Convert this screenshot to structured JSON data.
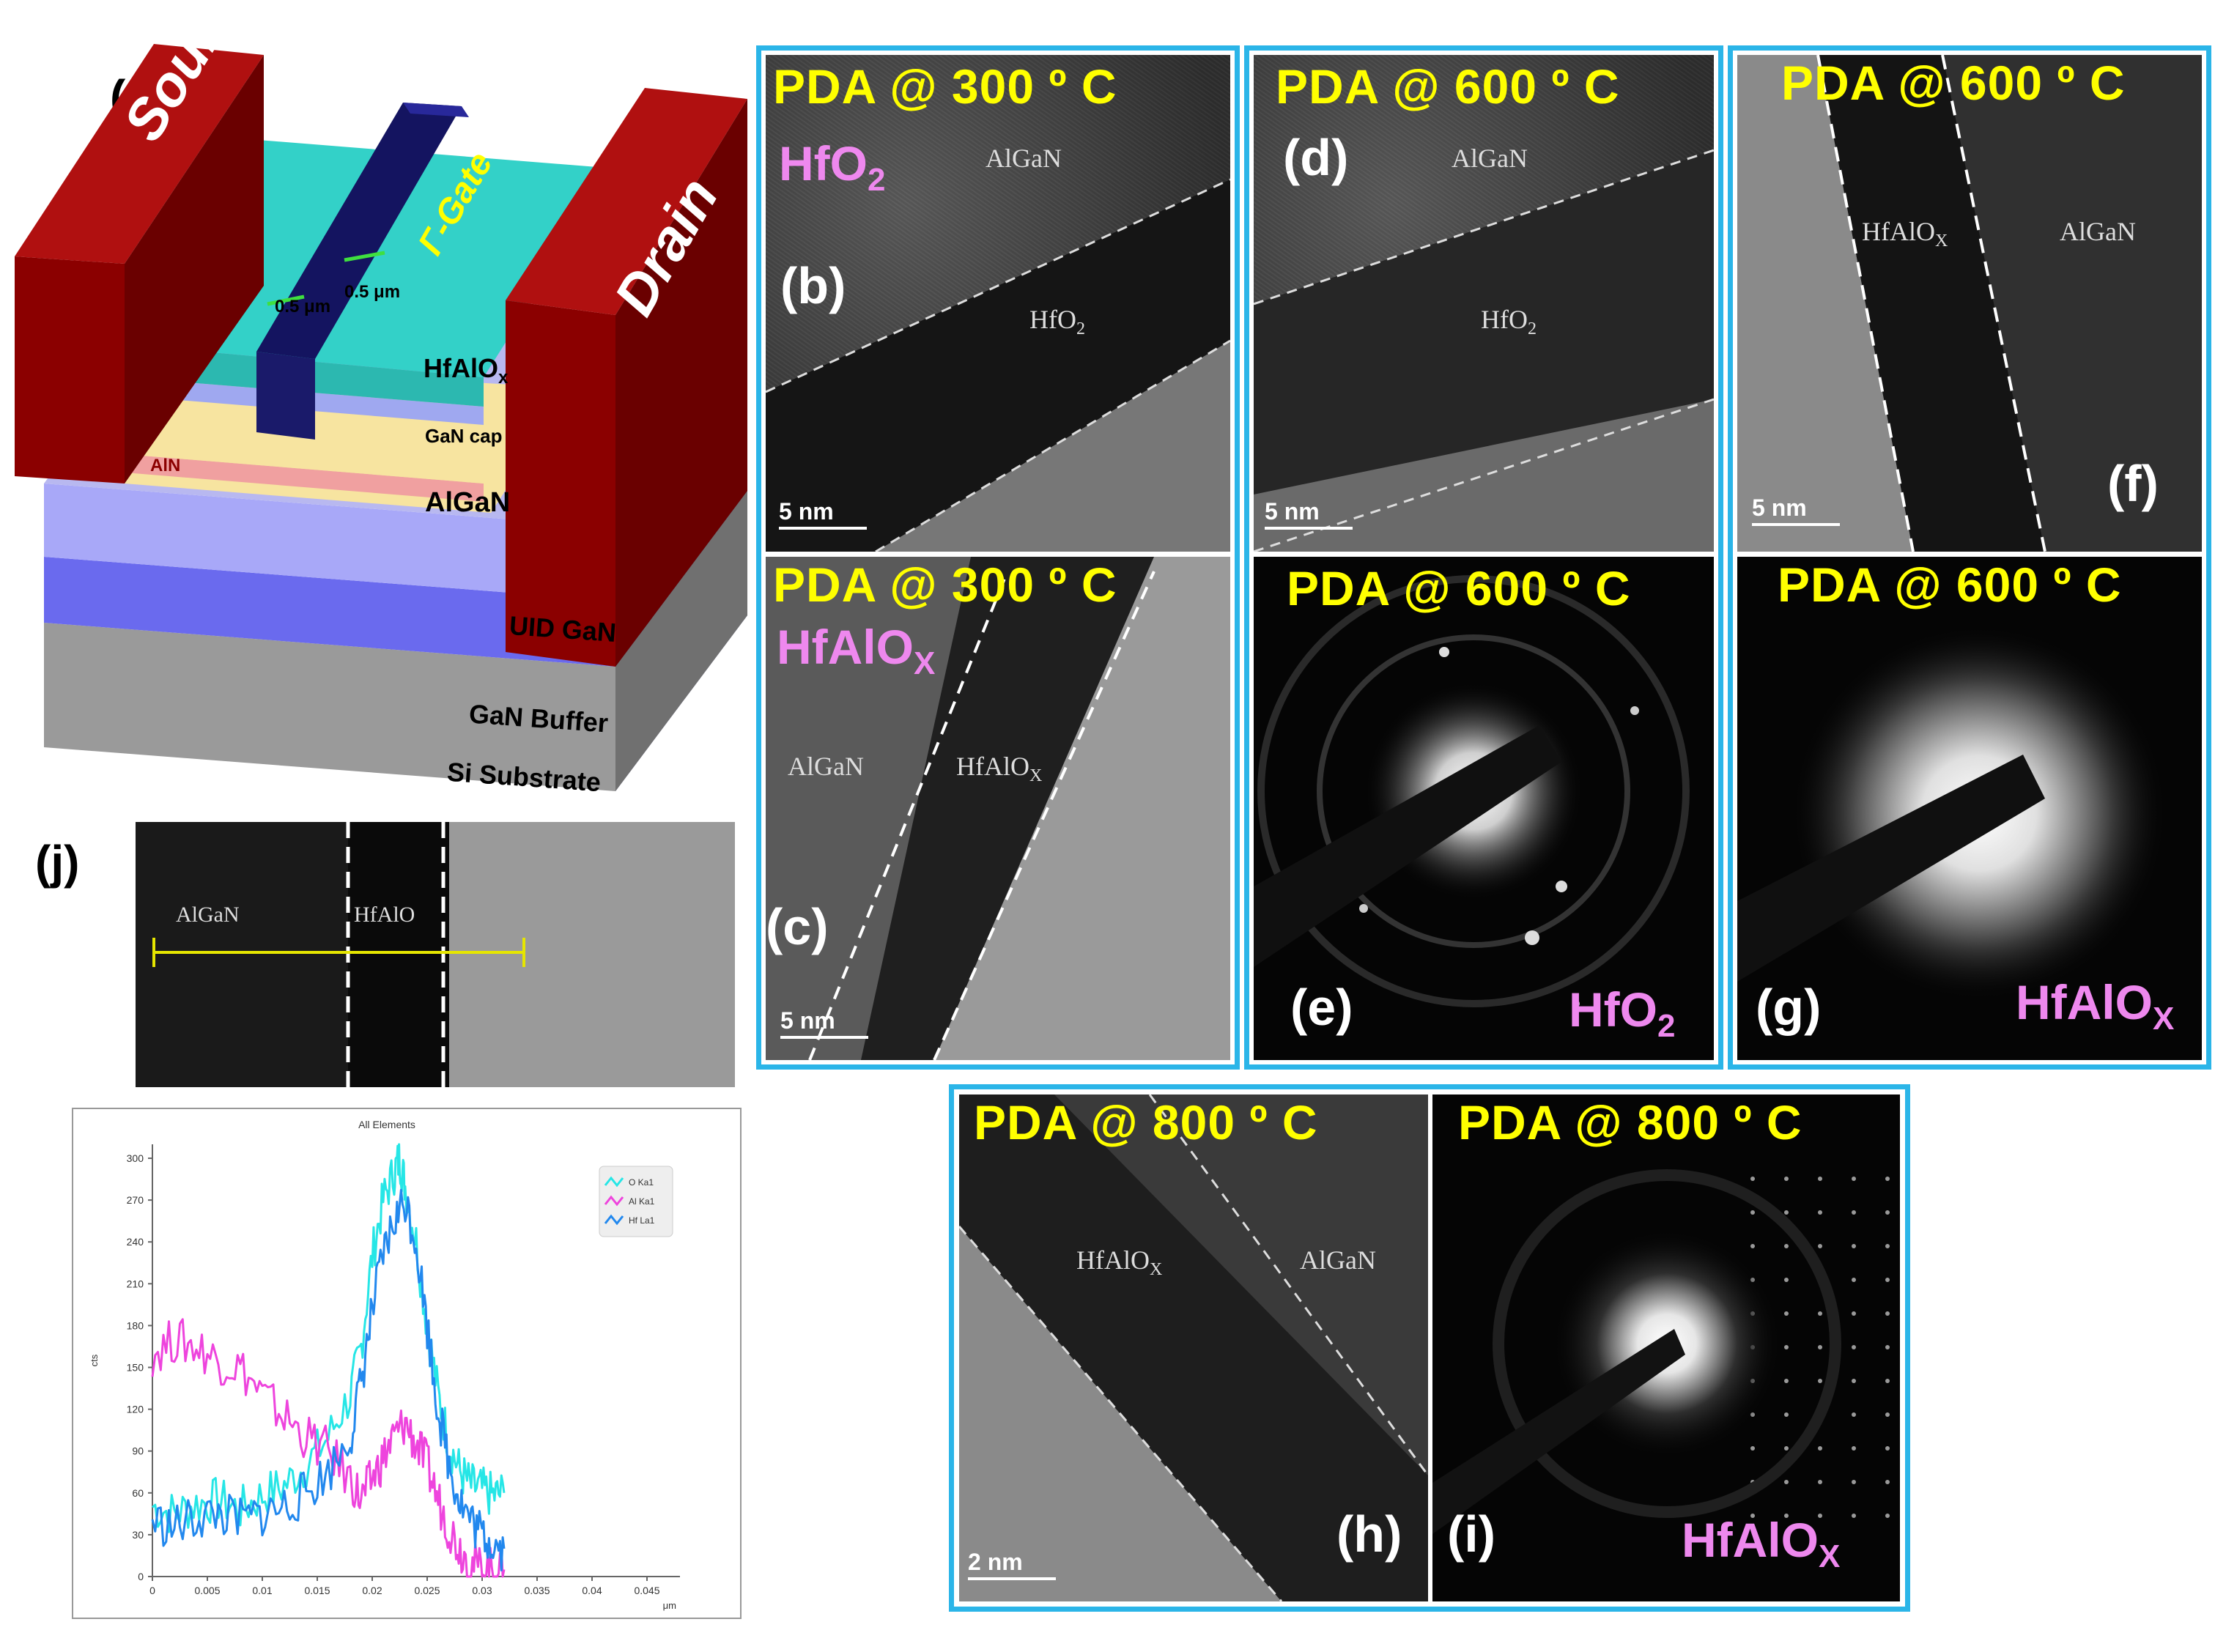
{
  "panel_labels": {
    "a": "(a)",
    "b": "(b)",
    "c": "(c)",
    "d": "(d)",
    "e": "(e)",
    "f": "(f)",
    "g": "(g)",
    "h": "(h)",
    "i": "(i)",
    "j": "(j)"
  },
  "device": {
    "source": "Source",
    "drain": "Drain",
    "gate": "Γ-Gate",
    "dim1": "0.5 μm",
    "dim2": "0.5 μm",
    "hfalox": "HfAlO",
    "hfalox_sub": "x",
    "gan_cap": "GaN cap",
    "aln": "AlN",
    "algan": "AlGaN",
    "uid_gan": "UID GaN",
    "gan_buffer": "GaN Buffer",
    "si_substrate": "Si Substrate",
    "colors": {
      "contact": "#8b0000",
      "passivation": "#33d1c8",
      "gate": "#141460",
      "algan": "#f7e4a0",
      "aln": "#f0a0a0",
      "uid": "#a8a8f8",
      "buffer": "#6a6aee",
      "substrate": "#9a9a9a"
    }
  },
  "panels": {
    "b": {
      "pda": "PDA @ 300 º C",
      "material": "HfO",
      "material_sub": "2",
      "layer1": "AlGaN",
      "layer2": "HfO",
      "layer2_sub": "2",
      "scale": "5 nm"
    },
    "c": {
      "pda": "PDA @ 300 º C",
      "material": "HfAlO",
      "material_sub": "X",
      "layer1": "AlGaN",
      "layer2": "HfAlO",
      "layer2_sub": "X",
      "scale": "5 nm"
    },
    "d": {
      "pda": "PDA @ 600 º C",
      "layer1": "AlGaN",
      "layer2": "HfO",
      "layer2_sub": "2",
      "scale": "5 nm"
    },
    "e": {
      "pda": "PDA @ 600 º C",
      "material": "HfO",
      "material_sub": "2"
    },
    "f": {
      "pda": "PDA @ 600 º C",
      "layer1": "HfAlO",
      "layer1_sub": "X",
      "layer2": "AlGaN",
      "scale": "5 nm"
    },
    "g": {
      "pda": "PDA @ 600 º C",
      "material": "HfAlO",
      "material_sub": "X"
    },
    "h": {
      "pda": "PDA @ 800 º C",
      "layer1": "HfAlO",
      "layer1_sub": "X",
      "layer2": "AlGaN",
      "scale": "2 nm"
    },
    "i": {
      "pda": "PDA @ 800 º C",
      "material": "HfAlO",
      "material_sub": "X"
    }
  },
  "eds_image": {
    "left": "AlGaN",
    "mid": "HfAlO"
  },
  "chart_data": {
    "type": "line",
    "title": "All Elements",
    "xlabel": "μm",
    "ylabel": "cts",
    "xlim": [
      0,
      0.048
    ],
    "ylim": [
      0,
      310
    ],
    "xticks": [
      "0",
      "0.005",
      "0.01",
      "0.015",
      "0.02",
      "0.025",
      "0.03",
      "0.035",
      "0.04",
      "0.045"
    ],
    "yticks": [
      "0",
      "30",
      "60",
      "90",
      "120",
      "150",
      "180",
      "210",
      "240",
      "270",
      "300"
    ],
    "legend": [
      "O Ka1",
      "Al Ka1",
      "Hf La1"
    ],
    "series": [
      {
        "name": "O Ka1",
        "color": "#26e6e6",
        "x": [
          0,
          0.002,
          0.004,
          0.006,
          0.008,
          0.01,
          0.012,
          0.014,
          0.016,
          0.018,
          0.019,
          0.02,
          0.021,
          0.022,
          0.0225,
          0.023,
          0.024,
          0.025,
          0.026,
          0.027,
          0.028,
          0.029,
          0.03,
          0.031,
          0.032
        ],
        "y": [
          50,
          45,
          52,
          55,
          48,
          58,
          65,
          80,
          100,
          130,
          165,
          230,
          270,
          290,
          300,
          280,
          240,
          180,
          130,
          95,
          75,
          65,
          62,
          58,
          60
        ]
      },
      {
        "name": "Al Ka1",
        "color": "#ee44dd",
        "x": [
          0,
          0.002,
          0.004,
          0.006,
          0.008,
          0.01,
          0.012,
          0.014,
          0.016,
          0.018,
          0.019,
          0.02,
          0.021,
          0.022,
          0.023,
          0.024,
          0.025,
          0.026,
          0.027,
          0.028,
          0.029,
          0.03,
          0.031,
          0.032
        ],
        "y": [
          160,
          170,
          165,
          155,
          150,
          130,
          115,
          100,
          90,
          70,
          55,
          70,
          85,
          100,
          110,
          95,
          80,
          55,
          35,
          20,
          10,
          5,
          5,
          5
        ]
      },
      {
        "name": "Hf La1",
        "color": "#2288ee",
        "x": [
          0,
          0.002,
          0.004,
          0.006,
          0.008,
          0.01,
          0.012,
          0.014,
          0.016,
          0.018,
          0.019,
          0.02,
          0.021,
          0.022,
          0.023,
          0.024,
          0.025,
          0.026,
          0.027,
          0.028,
          0.029,
          0.03,
          0.031,
          0.032
        ],
        "y": [
          40,
          35,
          42,
          45,
          40,
          45,
          50,
          60,
          75,
          100,
          140,
          190,
          230,
          255,
          270,
          240,
          180,
          120,
          80,
          55,
          40,
          30,
          25,
          20
        ]
      }
    ]
  }
}
